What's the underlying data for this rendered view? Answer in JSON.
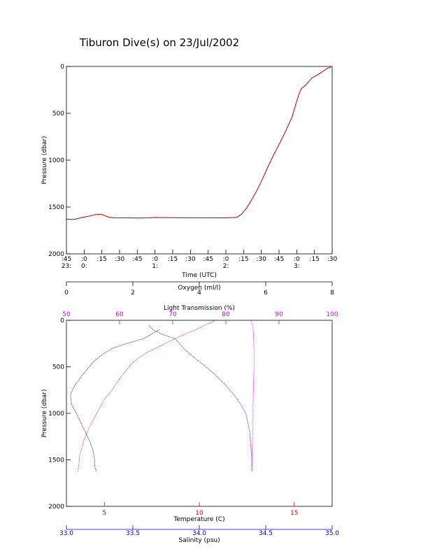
{
  "title": "Tiburon Dive(s) on 23/Jul/2002",
  "chart_data": [
    {
      "type": "line",
      "xlabel": "Time (UTC)",
      "ylabel": "Pressure (dbar)",
      "x_unit": "minutes after 22:45 UTC",
      "xlim": [
        0,
        225
      ],
      "ylim": [
        2000,
        0
      ],
      "y_reversed": true,
      "yticks": [
        0,
        500,
        1000,
        1500,
        2000
      ],
      "xticks": [
        {
          "v": 0,
          "top": ":45",
          "bottom": "23:"
        },
        {
          "v": 15,
          "top": ":0",
          "bottom": "0:"
        },
        {
          "v": 30,
          "top": ":15",
          "bottom": ""
        },
        {
          "v": 45,
          "top": ":30",
          "bottom": ""
        },
        {
          "v": 60,
          "top": ":45",
          "bottom": ""
        },
        {
          "v": 75,
          "top": ":0",
          "bottom": "1:"
        },
        {
          "v": 90,
          "top": ":15",
          "bottom": ""
        },
        {
          "v": 105,
          "top": ":30",
          "bottom": ""
        },
        {
          "v": 120,
          "top": ":45",
          "bottom": ""
        },
        {
          "v": 135,
          "top": ":0",
          "bottom": "2:"
        },
        {
          "v": 150,
          "top": ":15",
          "bottom": ""
        },
        {
          "v": 165,
          "top": ":30",
          "bottom": ""
        },
        {
          "v": 180,
          "top": ":45",
          "bottom": ""
        },
        {
          "v": 195,
          "top": ":0",
          "bottom": "3:"
        },
        {
          "v": 210,
          "top": ":15",
          "bottom": ""
        },
        {
          "v": 225,
          "top": ":30",
          "bottom": ""
        }
      ],
      "series": [
        {
          "color": "#ff0000",
          "points": [
            [
              0,
              1630
            ],
            [
              5,
              1632
            ],
            [
              8,
              1628
            ],
            [
              12,
              1615
            ],
            [
              15,
              1608
            ],
            [
              20,
              1595
            ],
            [
              24,
              1582
            ],
            [
              27,
              1578
            ],
            [
              30,
              1580
            ],
            [
              33,
              1595
            ],
            [
              36,
              1608
            ],
            [
              40,
              1615
            ],
            [
              50,
              1616
            ],
            [
              60,
              1617
            ],
            [
              70,
              1616
            ],
            [
              75,
              1612
            ],
            [
              80,
              1613
            ],
            [
              90,
              1614
            ],
            [
              100,
              1615
            ],
            [
              120,
              1616
            ],
            [
              135,
              1616
            ],
            [
              143,
              1612
            ],
            [
              145,
              1605
            ],
            [
              148,
              1580
            ],
            [
              152,
              1520
            ],
            [
              156,
              1440
            ],
            [
              161,
              1330
            ],
            [
              166,
              1200
            ],
            [
              171,
              1060
            ],
            [
              176,
              930
            ],
            [
              181,
              810
            ],
            [
              186,
              680
            ],
            [
              191,
              540
            ],
            [
              195,
              370
            ],
            [
              197,
              290
            ],
            [
              199,
              235
            ],
            [
              202,
              205
            ],
            [
              205,
              165
            ],
            [
              208,
              120
            ],
            [
              212,
              95
            ],
            [
              215,
              70
            ],
            [
              218,
              45
            ],
            [
              221,
              20
            ],
            [
              224,
              5
            ]
          ]
        }
      ]
    },
    {
      "type": "line",
      "ylabel": "Pressure (dbar)",
      "ylim": [
        2000,
        0
      ],
      "y_reversed": true,
      "yticks": [
        0,
        500,
        1000,
        1500,
        2000
      ],
      "axes": [
        {
          "id": "oxygen",
          "label": "Oxygen (ml/l)",
          "color": "#000000",
          "position": "top",
          "min": 0,
          "max": 8,
          "ticks": [
            0,
            2,
            4,
            6,
            8
          ]
        },
        {
          "id": "transmission",
          "label": "Light Transmission (%)",
          "color": "#dd00dd",
          "position": "top",
          "min": 50,
          "max": 100,
          "ticks": [
            50,
            60,
            70,
            80,
            90,
            100
          ]
        },
        {
          "id": "temperature",
          "label": "Temperature (C)",
          "color": "#dd0000",
          "position": "bottom",
          "min": 3,
          "max": 17,
          "ticks": [
            5,
            10,
            15
          ]
        },
        {
          "id": "salinity",
          "label": "Salinity (psu)",
          "color": "#0000cc",
          "position": "bottom",
          "min": 33.0,
          "max": 35.0,
          "ticks": [
            "33.0",
            "33.5",
            "34.0",
            "34.5",
            "35.0"
          ]
        }
      ],
      "series": [
        {
          "axis": "oxygen",
          "color": "#000000",
          "points": [
            [
              2.8,
              100
            ],
            [
              2.3,
              200
            ],
            [
              1.8,
              250
            ],
            [
              1.4,
              300
            ],
            [
              1.1,
              360
            ],
            [
              0.8,
              450
            ],
            [
              0.5,
              580
            ],
            [
              0.25,
              700
            ],
            [
              0.12,
              800
            ],
            [
              0.15,
              900
            ],
            [
              0.3,
              1000
            ],
            [
              0.5,
              1150
            ],
            [
              0.7,
              1300
            ],
            [
              0.8,
              1400
            ],
            [
              0.85,
              1500
            ],
            [
              0.85,
              1570
            ],
            [
              0.9,
              1620
            ]
          ]
        },
        {
          "axis": "temperature",
          "color": "#ff0000",
          "points": [
            [
              10.8,
              5
            ],
            [
              9.8,
              100
            ],
            [
              9.0,
              170
            ],
            [
              8.2,
              250
            ],
            [
              7.2,
              350
            ],
            [
              6.5,
              450
            ],
            [
              5.9,
              600
            ],
            [
              5.4,
              750
            ],
            [
              5.0,
              850
            ],
            [
              4.6,
              1000
            ],
            [
              4.2,
              1150
            ],
            [
              3.9,
              1300
            ],
            [
              3.7,
              1450
            ],
            [
              3.65,
              1560
            ],
            [
              3.6,
              1630
            ]
          ]
        },
        {
          "axis": "salinity",
          "color": "#0000ff",
          "points": [
            [
              33.62,
              50
            ],
            [
              33.65,
              100
            ],
            [
              33.72,
              150
            ],
            [
              33.82,
              200
            ],
            [
              33.88,
              300
            ],
            [
              33.96,
              400
            ],
            [
              34.05,
              500
            ],
            [
              34.13,
              600
            ],
            [
              34.2,
              700
            ],
            [
              34.26,
              800
            ],
            [
              34.31,
              900
            ],
            [
              34.35,
              1000
            ],
            [
              34.38,
              1200
            ],
            [
              34.39,
              1400
            ],
            [
              34.4,
              1600
            ],
            [
              34.4,
              1630
            ]
          ]
        },
        {
          "axis": "transmission",
          "color": "#ff00ff",
          "points": [
            [
              84.7,
              5
            ],
            [
              85.0,
              50
            ],
            [
              85.2,
              150
            ],
            [
              85.3,
              300
            ],
            [
              85.3,
              500
            ],
            [
              85.2,
              700
            ],
            [
              85.1,
              900
            ],
            [
              85.1,
              1100
            ],
            [
              85.0,
              1300
            ],
            [
              84.9,
              1500
            ],
            [
              84.8,
              1620
            ]
          ]
        }
      ]
    }
  ]
}
